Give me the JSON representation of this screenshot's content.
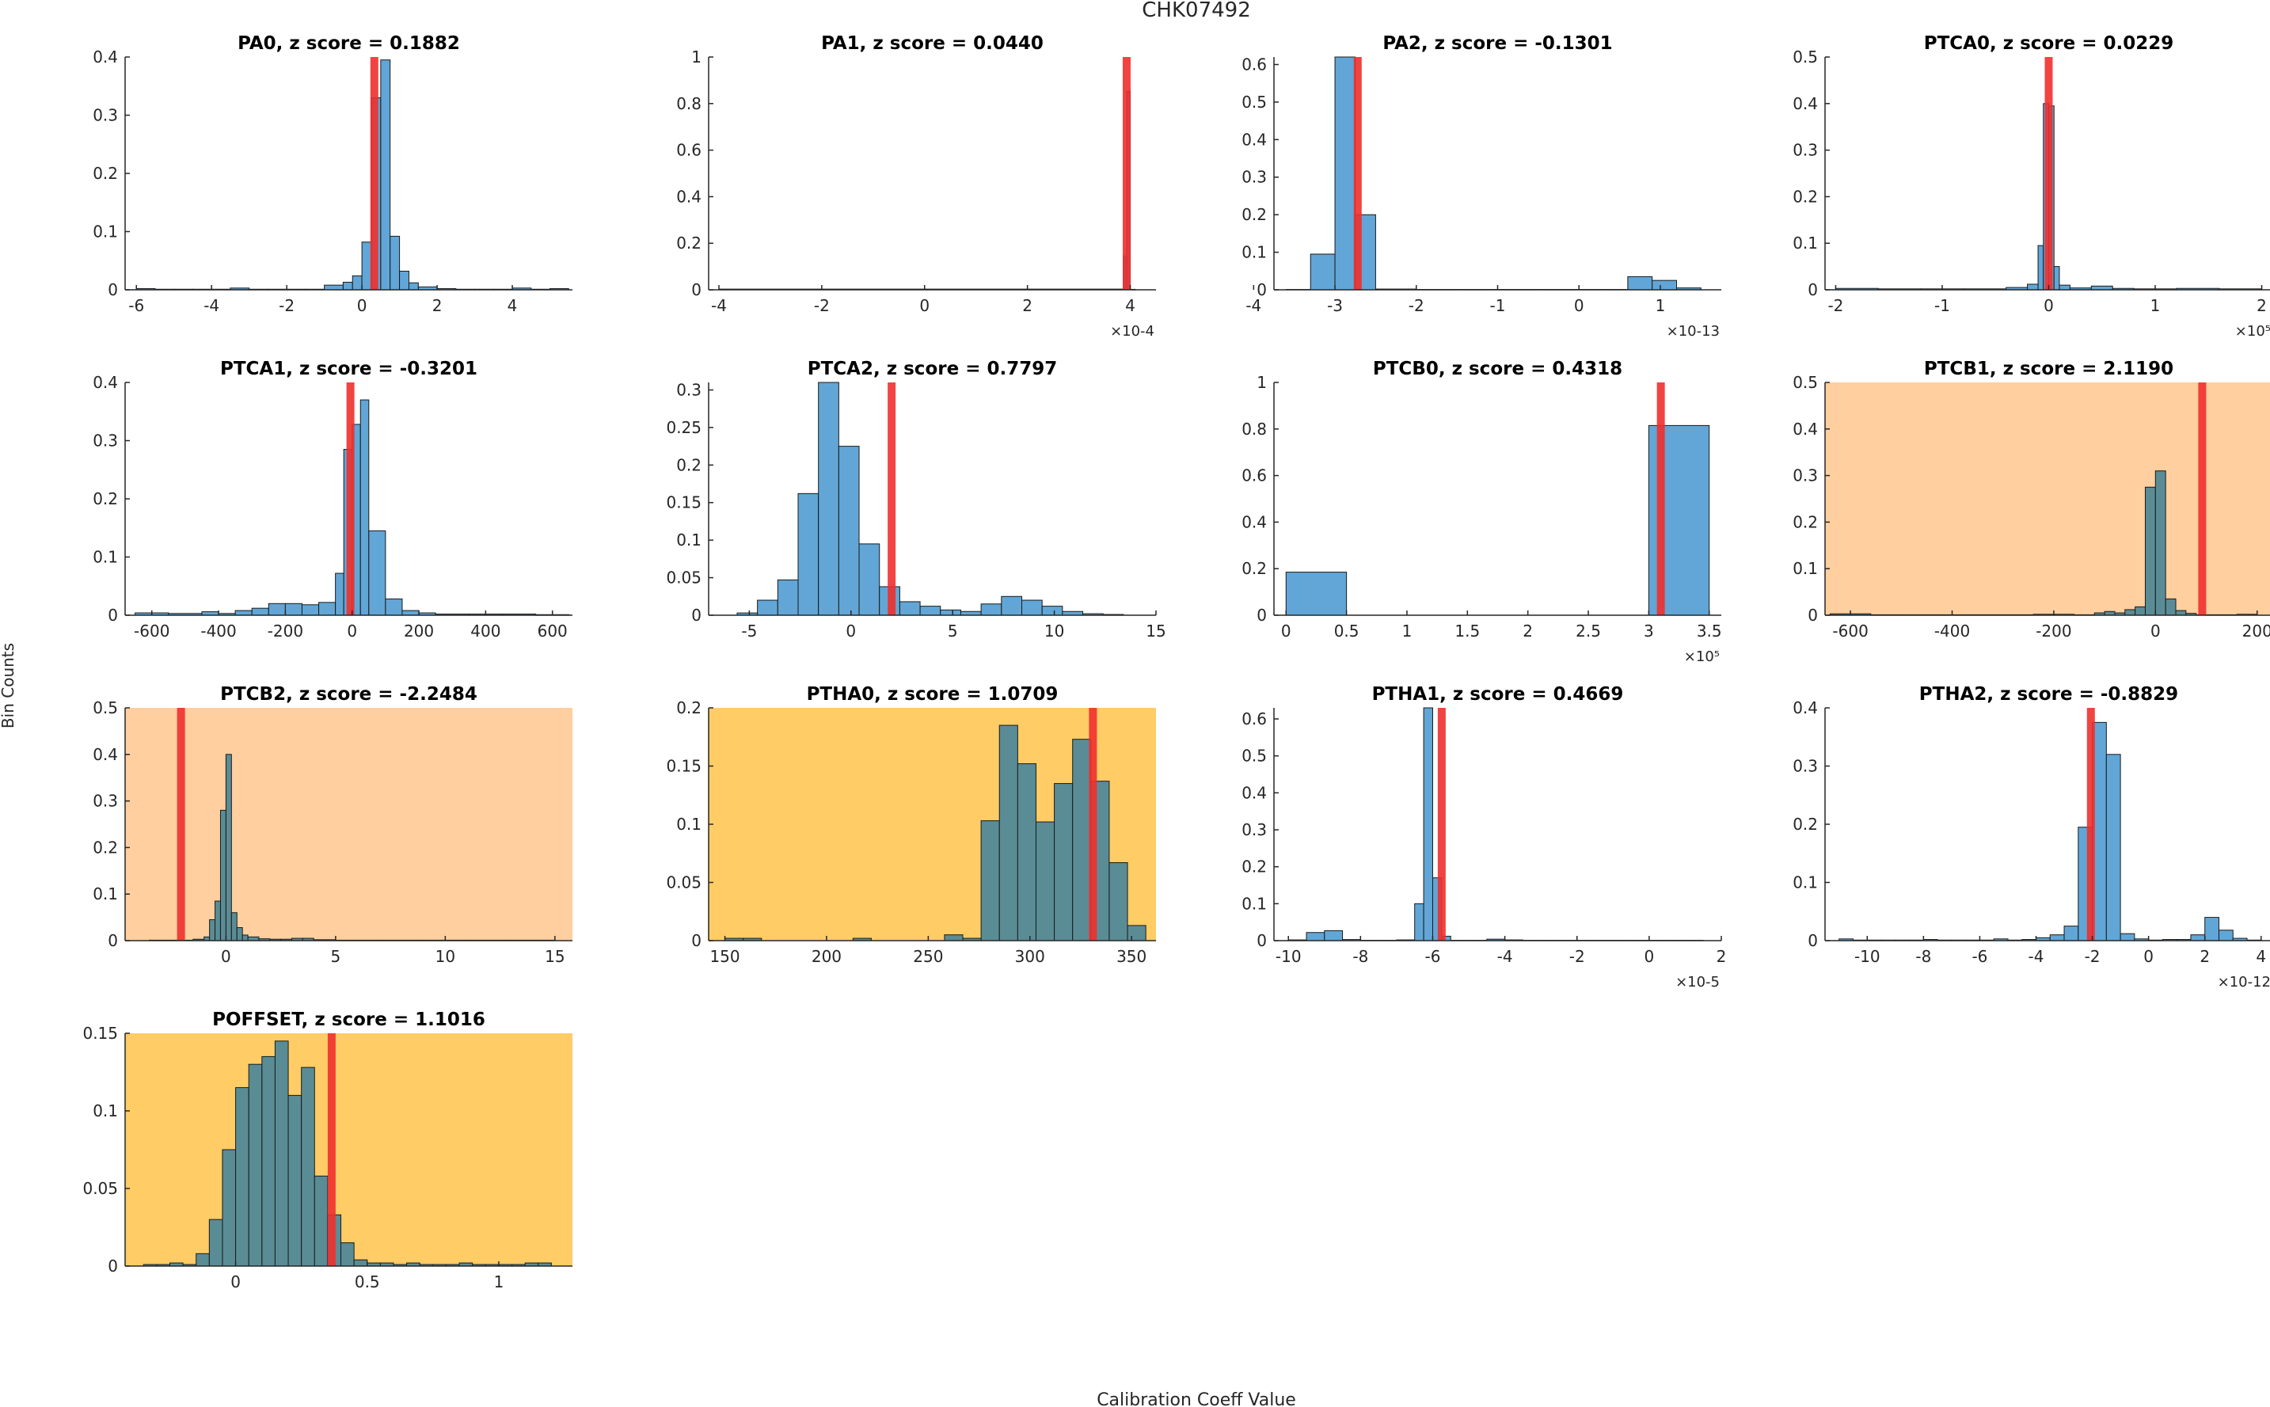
{
  "figure": {
    "title": "CHK07492",
    "xlabel": "Calibration Coeff Value",
    "ylabel": "Bin Counts"
  },
  "colors": {
    "bar": "#61a6d6",
    "bar_on_bg": "#5a8c95",
    "marker": "#f0302e",
    "bg_mild": "#ffcf9f",
    "bg_strong": "#ffcc66",
    "axis": "#262626"
  },
  "chart_data": [
    {
      "type": "bar",
      "title": "PA0, z score = 0.1882",
      "highlight": "none",
      "xlim": [
        -6.3,
        5.6
      ],
      "ylim": [
        0,
        0.4
      ],
      "xticks": [
        -6,
        -4,
        -2,
        0,
        2,
        4
      ],
      "xtick_labels": [
        "-6",
        "-4",
        "-2",
        "0",
        "2",
        "4"
      ],
      "yticks": [
        0,
        0.1,
        0.2,
        0.3,
        0.4
      ],
      "ytick_labels": [
        "0",
        "0.1",
        "0.2",
        "0.3",
        "0.4"
      ],
      "exponent": "",
      "marker": 0.33,
      "bin_edges": [
        -6.0,
        -5.5,
        -5.0,
        -4.5,
        -4.0,
        -3.5,
        -3.0,
        -2.5,
        -2.0,
        -1.5,
        -1.0,
        -0.5,
        -0.25,
        0.0,
        0.25,
        0.5,
        0.75,
        1.0,
        1.25,
        1.5,
        2.0,
        2.5,
        3.0,
        3.5,
        4.0,
        4.5,
        5.0,
        5.5
      ],
      "values": [
        0.002,
        0.001,
        0.001,
        0.001,
        0.001,
        0.003,
        0.001,
        0.001,
        0.001,
        0.001,
        0.008,
        0.013,
        0.024,
        0.082,
        0.33,
        0.395,
        0.092,
        0.032,
        0.012,
        0.005,
        0.002,
        0.001,
        0.001,
        0.001,
        0.003,
        0.001,
        0.002
      ]
    },
    {
      "type": "bar",
      "title": "PA1, z score = 0.0440",
      "highlight": "none",
      "xlim": [
        -4.2,
        4.5
      ],
      "ylim": [
        0,
        1
      ],
      "xticks": [
        -4,
        -2,
        0,
        2,
        4
      ],
      "xtick_labels": [
        "-4",
        "-2",
        "0",
        "2",
        "4"
      ],
      "yticks": [
        0,
        0.2,
        0.4,
        0.6,
        0.8,
        1
      ],
      "ytick_labels": [
        "0",
        "0.2",
        "0.4",
        "0.6",
        "0.8",
        "1"
      ],
      "exponent": "×10-4",
      "marker": 3.93,
      "bin_edges": [
        -4.0,
        3.8,
        3.87,
        3.93,
        4.0,
        4.1
      ],
      "values": [
        0.003,
        0.003,
        0.145,
        0.853,
        0.002
      ]
    },
    {
      "type": "bar",
      "title": "PA2, z score = -0.1301",
      "highlight": "none",
      "xlim": [
        -3.75,
        1.75
      ],
      "ylim": [
        0,
        0.62
      ],
      "xticks": [
        -4,
        -3,
        -2,
        -1,
        0,
        1
      ],
      "xtick_labels": [
        "-4",
        "-3",
        "-2",
        "-1",
        "0",
        "1"
      ],
      "yticks": [
        0,
        0.1,
        0.2,
        0.3,
        0.4,
        0.5,
        0.6
      ],
      "ytick_labels": [
        "0",
        "0.1",
        "0.2",
        "0.3",
        "0.4",
        "0.5",
        "0.6"
      ],
      "exponent": "×10-13",
      "marker": -2.72,
      "bin_edges": [
        -3.6,
        -3.3,
        -3.0,
        -2.75,
        -2.5,
        -2.0,
        -1.5,
        -1.0,
        -0.5,
        0.0,
        0.3,
        0.6,
        0.9,
        1.2,
        1.5
      ],
      "values": [
        0.001,
        0.095,
        0.62,
        0.2,
        0.002,
        0.001,
        0.001,
        0.001,
        0.001,
        0.001,
        0.001,
        0.035,
        0.025,
        0.005
      ]
    },
    {
      "type": "bar",
      "title": "PTCA0, z score = 0.0229",
      "highlight": "none",
      "xlim": [
        -2.1,
        2.1
      ],
      "ylim": [
        0,
        0.5
      ],
      "xticks": [
        -2,
        -1,
        0,
        1,
        2
      ],
      "xtick_labels": [
        "-2",
        "-1",
        "0",
        "1",
        "2"
      ],
      "yticks": [
        0,
        0.1,
        0.2,
        0.3,
        0.4,
        0.5
      ],
      "ytick_labels": [
        "0",
        "0.1",
        "0.2",
        "0.3",
        "0.4",
        "0.5"
      ],
      "exponent": "×10⁵",
      "marker": 0.0,
      "bin_edges": [
        -2.0,
        -1.6,
        -1.2,
        -0.8,
        -0.4,
        -0.2,
        -0.1,
        -0.05,
        0.0,
        0.05,
        0.1,
        0.2,
        0.4,
        0.6,
        0.8,
        1.2,
        1.6,
        2.0
      ],
      "values": [
        0.003,
        0.002,
        0.002,
        0.002,
        0.005,
        0.012,
        0.095,
        0.4,
        0.395,
        0.05,
        0.01,
        0.004,
        0.008,
        0.003,
        0.002,
        0.003,
        0.002
      ]
    },
    {
      "type": "bar",
      "title": "PTCA1, z score = -0.3201",
      "highlight": "none",
      "xlim": [
        -680,
        660
      ],
      "ylim": [
        0,
        0.4
      ],
      "xticks": [
        -600,
        -400,
        -200,
        0,
        200,
        400,
        600
      ],
      "xtick_labels": [
        "-600",
        "-400",
        "-200",
        "0",
        "200",
        "400",
        "600"
      ],
      "yticks": [
        0,
        0.1,
        0.2,
        0.3,
        0.4
      ],
      "ytick_labels": [
        "0",
        "0.1",
        "0.2",
        "0.3",
        "0.4"
      ],
      "exponent": "",
      "marker": -5,
      "bin_edges": [
        -650,
        -550,
        -450,
        -400,
        -350,
        -300,
        -250,
        -200,
        -150,
        -100,
        -50,
        -25,
        0,
        25,
        50,
        100,
        150,
        200,
        250,
        350,
        450,
        550,
        650
      ],
      "values": [
        0.004,
        0.003,
        0.006,
        0.003,
        0.008,
        0.012,
        0.02,
        0.02,
        0.018,
        0.022,
        0.072,
        0.285,
        0.328,
        0.37,
        0.145,
        0.028,
        0.008,
        0.004,
        0.002,
        0.002,
        0.002,
        0.001
      ]
    },
    {
      "type": "bar",
      "title": "PTCA2, z score = 0.7797",
      "highlight": "none",
      "xlim": [
        -7,
        15
      ],
      "ylim": [
        0,
        0.31
      ],
      "xticks": [
        -5,
        0,
        5,
        10,
        15
      ],
      "xtick_labels": [
        "-5",
        "0",
        "5",
        "10",
        "15"
      ],
      "yticks": [
        0,
        0.05,
        0.1,
        0.15,
        0.2,
        0.25,
        0.3
      ],
      "ytick_labels": [
        "0",
        "0.05",
        "0.1",
        "0.15",
        "0.2",
        "0.25",
        "0.3"
      ],
      "exponent": "",
      "marker": 2.0,
      "bin_edges": [
        -5.6,
        -4.6,
        -3.6,
        -2.6,
        -1.6,
        -0.6,
        0.4,
        1.4,
        2.4,
        3.4,
        4.4,
        5.4,
        6.4,
        7.4,
        8.4,
        9.4,
        10.4,
        11.4,
        12.4,
        13.4
      ],
      "values": [
        0.003,
        0.02,
        0.047,
        0.162,
        0.312,
        0.225,
        0.095,
        0.038,
        0.018,
        0.012,
        0.007,
        0.005,
        0.015,
        0.025,
        0.02,
        0.012,
        0.005,
        0.002,
        0.001
      ]
    },
    {
      "type": "bar",
      "title": "PTCB0, z score = 0.4318",
      "highlight": "none",
      "xlim": [
        -0.1,
        3.6
      ],
      "ylim": [
        0,
        1
      ],
      "xticks": [
        0,
        0.5,
        1,
        1.5,
        2,
        2.5,
        3,
        3.5
      ],
      "xtick_labels": [
        "0",
        "0.5",
        "1",
        "1.5",
        "2",
        "2.5",
        "3",
        "3.5"
      ],
      "yticks": [
        0,
        0.2,
        0.4,
        0.6,
        0.8,
        1
      ],
      "ytick_labels": [
        "0",
        "0.2",
        "0.4",
        "0.6",
        "0.8",
        "1"
      ],
      "exponent": "×10⁵",
      "marker": 3.1,
      "bin_edges": [
        0.0,
        0.5,
        3.0,
        3.5
      ],
      "values": [
        0.185,
        0.0,
        0.815
      ]
    },
    {
      "type": "bar",
      "title": "PTCB1, z score = 2.1190",
      "highlight": "mild",
      "xlim": [
        -650,
        230
      ],
      "ylim": [
        0,
        0.5
      ],
      "xticks": [
        -600,
        -400,
        -200,
        0,
        200
      ],
      "xtick_labels": [
        "-600",
        "-400",
        "-200",
        "0",
        "200"
      ],
      "yticks": [
        0,
        0.1,
        0.2,
        0.3,
        0.4,
        0.5
      ],
      "ytick_labels": [
        "0",
        "0.1",
        "0.2",
        "0.3",
        "0.4",
        "0.5"
      ],
      "exponent": "",
      "marker": 92,
      "bin_edges": [
        -640,
        -560,
        -480,
        -400,
        -320,
        -240,
        -160,
        -120,
        -100,
        -80,
        -60,
        -40,
        -20,
        0,
        20,
        40,
        60,
        80,
        120,
        160,
        200
      ],
      "values": [
        0.003,
        0.001,
        0.001,
        0.001,
        0.001,
        0.002,
        0.001,
        0.005,
        0.008,
        0.005,
        0.012,
        0.018,
        0.275,
        0.31,
        0.035,
        0.01,
        0.004,
        0.001,
        0.001,
        0.002
      ]
    },
    {
      "type": "bar",
      "title": "PTCB2, z score = -2.2484",
      "highlight": "mild",
      "xlim": [
        -4.6,
        15.8
      ],
      "ylim": [
        0,
        0.5
      ],
      "xticks": [
        0,
        5,
        10,
        15
      ],
      "xtick_labels": [
        "0",
        "5",
        "10",
        "15"
      ],
      "yticks": [
        0,
        0.1,
        0.2,
        0.3,
        0.4,
        0.5
      ],
      "ytick_labels": [
        "0",
        "0.1",
        "0.2",
        "0.3",
        "0.4",
        "0.5"
      ],
      "exponent": "",
      "marker": -2.05,
      "bin_edges": [
        -3.5,
        -2.5,
        -1.5,
        -1.0,
        -0.75,
        -0.5,
        -0.25,
        0.0,
        0.25,
        0.5,
        0.75,
        1.0,
        1.5,
        2.0,
        2.5,
        3.0,
        3.5,
        4.0,
        5.0,
        7.0,
        9.0,
        11.0,
        13.0,
        15.0
      ],
      "values": [
        0.001,
        0.001,
        0.003,
        0.008,
        0.045,
        0.085,
        0.28,
        0.4,
        0.06,
        0.028,
        0.012,
        0.008,
        0.004,
        0.003,
        0.003,
        0.005,
        0.005,
        0.002,
        0.001,
        0.001,
        0.001,
        0.001,
        0.001
      ]
    },
    {
      "type": "bar",
      "title": "PTHA0, z score = 1.0709",
      "highlight": "strong",
      "xlim": [
        142,
        362
      ],
      "ylim": [
        0,
        0.2
      ],
      "xticks": [
        150,
        200,
        250,
        300,
        350
      ],
      "xtick_labels": [
        "150",
        "200",
        "250",
        "300",
        "350"
      ],
      "yticks": [
        0,
        0.05,
        0.1,
        0.15,
        0.2
      ],
      "ytick_labels": [
        "0",
        "0.05",
        "0.1",
        "0.15",
        "0.2"
      ],
      "exponent": "",
      "marker": 331,
      "bin_edges": [
        150,
        159,
        168,
        177,
        186,
        195,
        204,
        213,
        222,
        231,
        240,
        249,
        258,
        267,
        276,
        285,
        294,
        303,
        312,
        321,
        330,
        339,
        348,
        357
      ],
      "values": [
        0.002,
        0.002,
        0.0,
        0.0,
        0.0,
        0.0,
        0.0,
        0.002,
        0.0,
        0.0,
        0.0,
        0.0,
        0.005,
        0.002,
        0.103,
        0.185,
        0.152,
        0.102,
        0.135,
        0.173,
        0.137,
        0.067,
        0.013
      ]
    },
    {
      "type": "bar",
      "title": "PTHA1, z score = 0.4669",
      "highlight": "none",
      "xlim": [
        -10.4,
        2.0
      ],
      "ylim": [
        0,
        0.63
      ],
      "xticks": [
        -10,
        -8,
        -6,
        -4,
        -2,
        0,
        2
      ],
      "xtick_labels": [
        "-10",
        "-8",
        "-6",
        "-4",
        "-2",
        "0",
        "2"
      ],
      "yticks": [
        0,
        0.1,
        0.2,
        0.3,
        0.4,
        0.5,
        0.6
      ],
      "ytick_labels": [
        "0",
        "0.1",
        "0.2",
        "0.3",
        "0.4",
        "0.5",
        "0.6"
      ],
      "exponent": "×10-5",
      "marker": -5.75,
      "bin_edges": [
        -10.0,
        -9.5,
        -9.0,
        -8.5,
        -8.0,
        -7.5,
        -7.0,
        -6.5,
        -6.25,
        -6.0,
        -5.75,
        -5.5,
        -5.0,
        -4.5,
        -4.0,
        -3.5,
        -3.0,
        -2.5,
        -2.0,
        -1.5,
        -1.0,
        -0.5,
        0.0,
        0.5,
        1.0,
        1.5
      ],
      "values": [
        0.002,
        0.022,
        0.027,
        0.003,
        0.001,
        0.001,
        0.002,
        0.1,
        0.63,
        0.17,
        0.012,
        0.001,
        0.001,
        0.004,
        0.002,
        0.001,
        0.001,
        0.001,
        0.001,
        0.001,
        0.001,
        0.001,
        0.001,
        0.001,
        0.001
      ]
    },
    {
      "type": "bar",
      "title": "PTHA2, z score = -0.8829",
      "highlight": "none",
      "xlim": [
        -11.5,
        4.4
      ],
      "ylim": [
        0,
        0.4
      ],
      "xticks": [
        -10,
        -8,
        -6,
        -4,
        -2,
        0,
        2,
        4
      ],
      "xtick_labels": [
        "-10",
        "-8",
        "-6",
        "-4",
        "-2",
        "0",
        "2",
        "4"
      ],
      "yticks": [
        0,
        0.1,
        0.2,
        0.3,
        0.4
      ],
      "ytick_labels": [
        "0",
        "0.1",
        "0.2",
        "0.3",
        "0.4"
      ],
      "exponent": "×10-12",
      "marker": -2.05,
      "bin_edges": [
        -11.0,
        -10.5,
        -10.0,
        -9.5,
        -9.0,
        -8.5,
        -8.0,
        -7.5,
        -7.0,
        -6.5,
        -6.0,
        -5.5,
        -5.0,
        -4.5,
        -4.0,
        -3.5,
        -3.0,
        -2.5,
        -2.0,
        -1.5,
        -1.0,
        -0.5,
        0.0,
        0.5,
        1.0,
        1.5,
        2.0,
        2.5,
        3.0,
        3.5,
        4.0
      ],
      "values": [
        0.003,
        0.001,
        0.001,
        0.001,
        0.001,
        0.001,
        0.002,
        0.001,
        0.001,
        0.001,
        0.001,
        0.003,
        0.001,
        0.002,
        0.005,
        0.01,
        0.025,
        0.195,
        0.375,
        0.32,
        0.012,
        0.003,
        0.001,
        0.002,
        0.002,
        0.01,
        0.04,
        0.018,
        0.004,
        0.001
      ]
    },
    {
      "type": "bar",
      "title": "POFFSET, z score = 1.1016",
      "highlight": "strong",
      "xlim": [
        -0.42,
        1.28
      ],
      "ylim": [
        0,
        0.15
      ],
      "xticks": [
        0,
        0.5,
        1
      ],
      "xtick_labels": [
        "0",
        "0.5",
        "1"
      ],
      "yticks": [
        0,
        0.05,
        0.1,
        0.15
      ],
      "ytick_labels": [
        "0",
        "0.05",
        "0.1",
        "0.15"
      ],
      "exponent": "",
      "marker": 0.365,
      "bin_edges": [
        -0.35,
        -0.3,
        -0.25,
        -0.2,
        -0.15,
        -0.1,
        -0.05,
        0.0,
        0.05,
        0.1,
        0.15,
        0.2,
        0.25,
        0.3,
        0.35,
        0.4,
        0.45,
        0.5,
        0.55,
        0.6,
        0.65,
        0.7,
        0.75,
        0.8,
        0.85,
        0.9,
        0.95,
        1.0,
        1.05,
        1.1,
        1.15,
        1.2
      ],
      "values": [
        0.001,
        0.001,
        0.002,
        0.001,
        0.008,
        0.03,
        0.075,
        0.115,
        0.13,
        0.135,
        0.145,
        0.11,
        0.128,
        0.058,
        0.033,
        0.015,
        0.004,
        0.002,
        0.002,
        0.001,
        0.002,
        0.001,
        0.001,
        0.001,
        0.002,
        0.001,
        0.001,
        0.001,
        0.001,
        0.002,
        0.002
      ]
    }
  ]
}
